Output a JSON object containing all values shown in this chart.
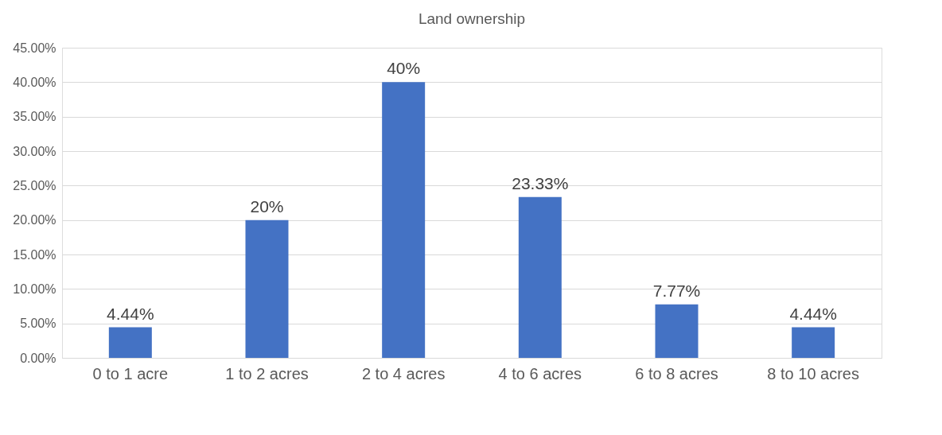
{
  "chart_data": {
    "type": "bar",
    "title": "Land ownership",
    "categories": [
      "0 to 1 acre",
      "1 to  2 acres",
      "2 to 4 acres",
      "4 to 6 acres",
      "6 to 8 acres",
      "8 to 10 acres"
    ],
    "values": [
      4.44,
      20,
      40,
      23.33,
      7.77,
      4.44
    ],
    "value_labels": [
      "4.44%",
      "20%",
      "40%",
      "23.33%",
      "7.77%",
      "4.44%"
    ],
    "color": "#4472c4",
    "ylim": [
      0,
      45
    ],
    "yticks": [
      {
        "value": 0,
        "label": "0.00%"
      },
      {
        "value": 5,
        "label": "5.00%"
      },
      {
        "value": 10,
        "label": "10.00%"
      },
      {
        "value": 15,
        "label": "15.00%"
      },
      {
        "value": 20,
        "label": "20.00%"
      },
      {
        "value": 25,
        "label": "25.00%"
      },
      {
        "value": 30,
        "label": "30.00%"
      },
      {
        "value": 35,
        "label": "35.00%"
      },
      {
        "value": 40,
        "label": "40.00%"
      },
      {
        "value": 45,
        "label": "45.00%"
      }
    ],
    "grid": "y"
  }
}
